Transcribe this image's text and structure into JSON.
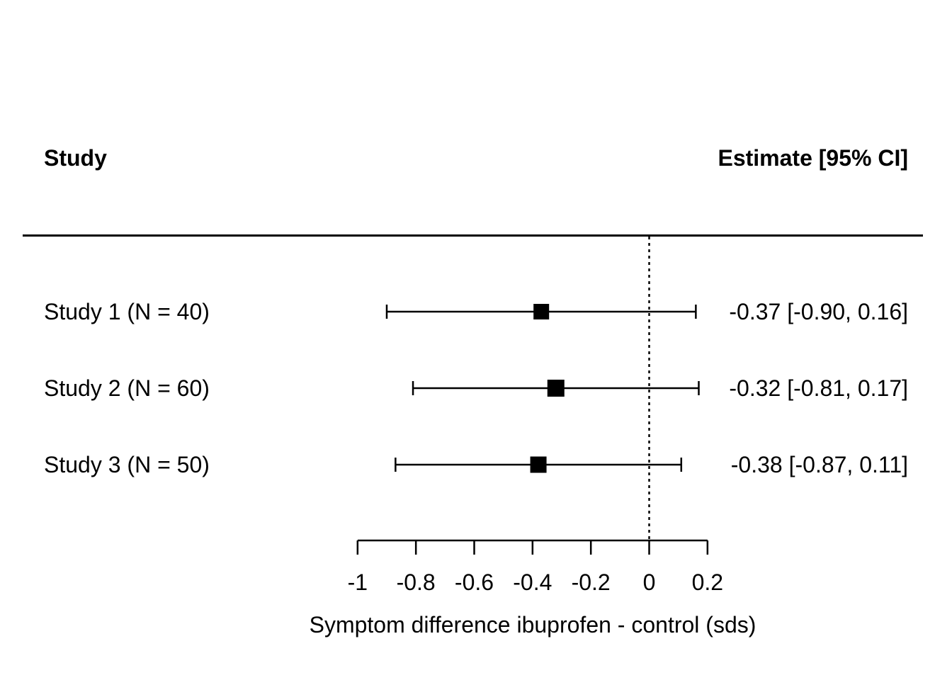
{
  "header": {
    "study_column": "Study",
    "estimate_column": "Estimate [95% CI]"
  },
  "chart_data": {
    "type": "forest",
    "xlabel": "Symptom difference ibuprofen - control (sds)",
    "xlim": [
      -1,
      0.2
    ],
    "x_ticks": [
      -1,
      -0.8,
      -0.6,
      -0.4,
      -0.2,
      0,
      0.2
    ],
    "x_tick_labels": [
      "-1",
      "-0.8",
      "-0.6",
      "-0.4",
      "-0.2",
      "0",
      "0.2"
    ],
    "reference_line_x": 0,
    "reference_line_style": "dotted",
    "legend": "none",
    "grid": false,
    "studies": [
      {
        "label": "Study 1 (N = 40)",
        "n": 40,
        "estimate": -0.37,
        "ci_lower": -0.9,
        "ci_upper": 0.16,
        "estimate_label": "-0.37 [-0.90, 0.16]",
        "marker_size_px": 22
      },
      {
        "label": "Study 2 (N = 60)",
        "n": 60,
        "estimate": -0.32,
        "ci_lower": -0.81,
        "ci_upper": 0.17,
        "estimate_label": "-0.32 [-0.81, 0.17]",
        "marker_size_px": 24
      },
      {
        "label": "Study 3 (N = 50)",
        "n": 50,
        "estimate": -0.38,
        "ci_lower": -0.87,
        "ci_upper": 0.11,
        "estimate_label": "-0.38 [-0.87, 0.11]",
        "marker_size_px": 23
      }
    ]
  },
  "colors": {
    "foreground": "#000000",
    "background": "#ffffff"
  }
}
